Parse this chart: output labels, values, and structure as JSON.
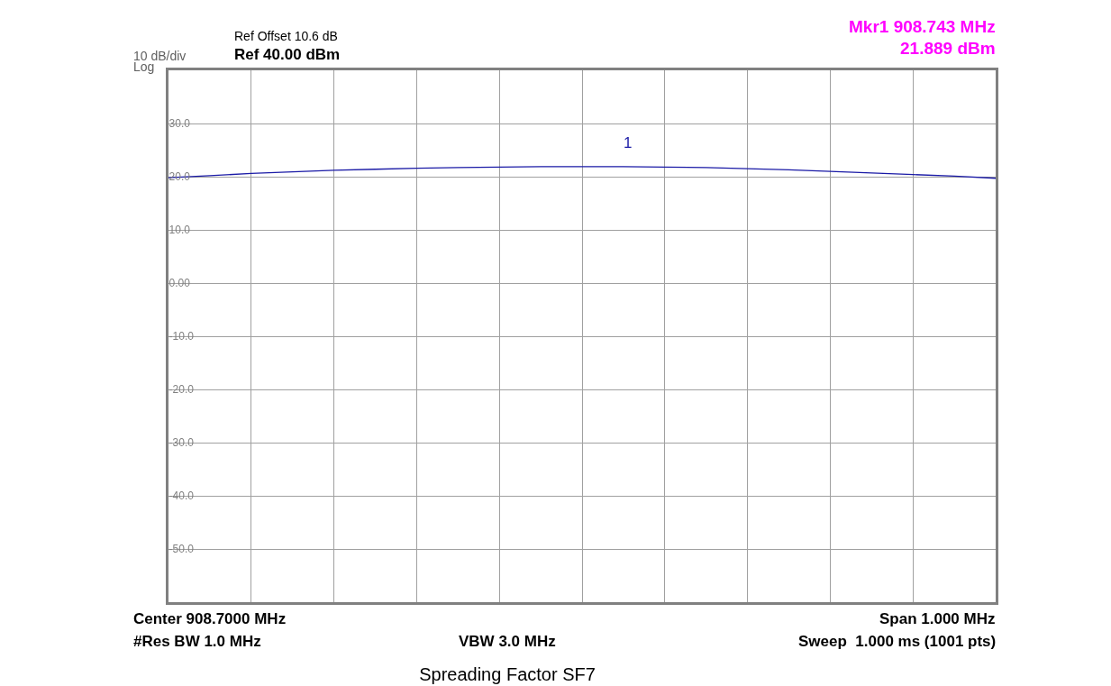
{
  "chart_data": {
    "type": "line",
    "title": "Spreading Factor SF7",
    "categories": [
      null,
      null,
      null,
      null,
      null,
      null,
      null,
      null,
      null,
      null,
      null,
      null,
      null,
      null,
      null,
      null,
      null,
      null,
      null,
      null,
      null
    ],
    "series": [
      {
        "color": "#1a1aa6",
        "values": [
          19.8,
          20.2,
          20.6,
          20.9,
          21.2,
          21.4,
          21.6,
          21.7,
          21.8,
          21.9,
          21.9,
          21.9,
          21.8,
          21.7,
          21.5,
          21.3,
          21.0,
          20.7,
          20.4,
          20.1,
          19.7
        ]
      }
    ],
    "ylim": [
      -60,
      40
    ],
    "yticks": [
      {
        "value": 40,
        "label": null
      },
      {
        "value": 30,
        "label": "30.0"
      },
      {
        "value": 20,
        "label": "20.0"
      },
      {
        "value": 10,
        "label": "10.0"
      },
      {
        "value": 0,
        "label": "0.00"
      },
      {
        "value": -10,
        "label": "-10.0"
      },
      {
        "value": -20,
        "label": "-20.0"
      },
      {
        "value": -30,
        "label": "-30.0"
      },
      {
        "value": -40,
        "label": "-40.0"
      },
      {
        "value": -50,
        "label": "-50.0"
      },
      {
        "value": -60,
        "label": null
      }
    ],
    "grid": true,
    "annotations": [
      "10 dB/div",
      "Log",
      "Ref Offset 10.6 dB",
      "Ref 40.00 dBm",
      "Mkr1 908.743 MHz",
      "21.889 dBm",
      "Center 908.7000 MHz",
      "Span 1.000 MHz",
      "#Res BW 1.0 MHz",
      "VBW 3.0 MHz",
      "Sweep  1.000 ms (1001 pts)",
      "1"
    ]
  }
}
